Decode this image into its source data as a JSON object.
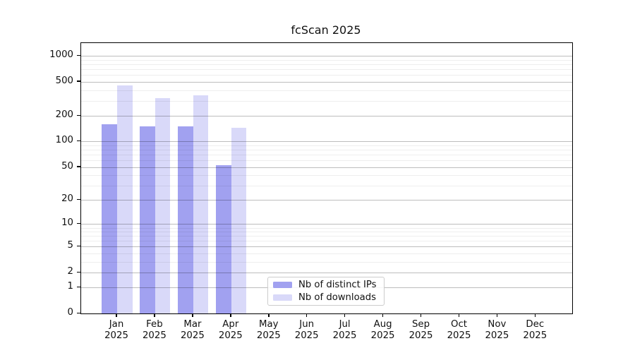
{
  "chart_data": {
    "type": "bar",
    "title": "fcScan 2025",
    "y_scale": "log1p",
    "y_max": 1415,
    "y_ticks": [
      0,
      1,
      2,
      5,
      10,
      20,
      50,
      100,
      200,
      500,
      1000
    ],
    "y_minor_ticks": [
      3,
      4,
      6,
      7,
      8,
      9,
      30,
      40,
      60,
      70,
      80,
      90,
      300,
      400,
      600,
      700,
      800,
      900
    ],
    "grid": true,
    "legend_position": "lower-center",
    "categories": [
      {
        "month": "Jan",
        "year": "2025"
      },
      {
        "month": "Feb",
        "year": "2025"
      },
      {
        "month": "Mar",
        "year": "2025"
      },
      {
        "month": "Apr",
        "year": "2025"
      },
      {
        "month": "May",
        "year": "2025"
      },
      {
        "month": "Jun",
        "year": "2025"
      },
      {
        "month": "Jul",
        "year": "2025"
      },
      {
        "month": "Aug",
        "year": "2025"
      },
      {
        "month": "Sep",
        "year": "2025"
      },
      {
        "month": "Oct",
        "year": "2025"
      },
      {
        "month": "Nov",
        "year": "2025"
      },
      {
        "month": "Dec",
        "year": "2025"
      }
    ],
    "series": [
      {
        "name": "Nb of distinct IPs",
        "color": "#a1a1f0",
        "values": [
          160,
          150,
          150,
          52,
          null,
          null,
          null,
          null,
          null,
          null,
          null,
          null
        ]
      },
      {
        "name": "Nb of downloads",
        "color": "#d9d9f9",
        "values": [
          450,
          320,
          350,
          145,
          null,
          null,
          null,
          null,
          null,
          null,
          null,
          null
        ]
      }
    ]
  }
}
